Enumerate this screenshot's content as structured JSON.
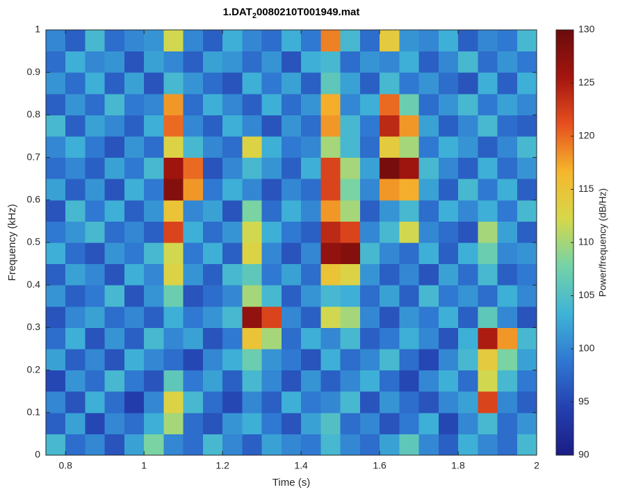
{
  "chart_data": {
    "type": "heatmap",
    "title": {
      "main": "1.DAT",
      "subscript": "2",
      "rest": "0080210T001949.mat"
    },
    "x_label": "Time (s)",
    "y_label": "Frequency (kHz)",
    "colorbar_label": "Power/frequency (dB/Hz)",
    "xlim": [
      0.75,
      2
    ],
    "xticks": [
      0.8,
      1,
      1.2,
      1.4,
      1.6,
      1.8,
      2
    ],
    "ylim": [
      0,
      1
    ],
    "yticks": [
      0,
      0.1,
      0.2,
      0.3,
      0.4,
      0.5,
      0.6,
      0.7,
      0.8,
      0.9,
      1
    ],
    "clim": [
      90,
      130
    ],
    "cticks": [
      90,
      95,
      100,
      105,
      110,
      115,
      120,
      125,
      130
    ],
    "colormap": [
      "#1b1c85",
      "#2440b0",
      "#2f78d2",
      "#3fb3d6",
      "#74d3a8",
      "#d6d84a",
      "#f6b62c",
      "#e6501f",
      "#a4150f",
      "#6a0c0c"
    ],
    "x_edges": [
      0.75,
      0.8,
      0.85,
      0.9,
      0.95,
      1,
      1.05,
      1.1,
      1.15,
      1.2,
      1.25,
      1.3,
      1.35,
      1.4,
      1.45,
      1.5,
      1.55,
      1.6,
      1.65,
      1.7,
      1.75,
      1.8,
      1.85,
      1.9,
      1.95,
      2
    ],
    "y_edges": [
      0,
      0.05,
      0.1,
      0.15,
      0.2,
      0.25,
      0.3,
      0.35,
      0.4,
      0.45,
      0.5,
      0.55,
      0.6,
      0.65,
      0.7,
      0.75,
      0.8,
      0.85,
      0.9,
      0.95,
      1
    ],
    "values": [
      [
        104,
        98,
        100,
        96,
        102,
        108,
        100,
        98,
        104,
        100,
        97,
        102,
        100,
        99,
        104,
        100,
        98,
        102,
        106,
        100,
        97,
        103,
        100,
        98,
        104
      ],
      [
        97,
        102,
        95,
        100,
        98,
        103,
        110,
        98,
        96,
        101,
        103,
        99,
        96,
        102,
        105,
        98,
        100,
        96,
        99,
        103,
        95,
        100,
        104,
        98,
        101
      ],
      [
        100,
        96,
        103,
        98,
        94,
        100,
        113,
        104,
        98,
        95,
        100,
        97,
        103,
        99,
        100,
        104,
        96,
        101,
        98,
        96,
        100,
        102,
        122,
        100,
        97
      ],
      [
        95,
        101,
        98,
        104,
        99,
        96,
        106,
        99,
        102,
        97,
        104,
        100,
        96,
        101,
        97,
        100,
        103,
        98,
        95,
        100,
        103,
        98,
        112,
        104,
        99
      ],
      [
        102,
        97,
        100,
        96,
        103,
        100,
        98,
        95,
        100,
        103,
        107,
        101,
        99,
        96,
        103,
        98,
        100,
        104,
        98,
        95,
        100,
        104,
        114,
        108,
        102
      ],
      [
        98,
        103,
        96,
        101,
        97,
        104,
        100,
        102,
        96,
        99,
        115,
        110,
        98,
        103,
        100,
        104,
        97,
        99,
        103,
        100,
        96,
        103,
        125,
        118,
        104
      ],
      [
        96,
        100,
        102,
        98,
        100,
        97,
        103,
        99,
        101,
        104,
        127,
        122,
        100,
        97,
        112,
        110,
        100,
        96,
        101,
        99,
        103,
        97,
        106,
        100,
        96
      ],
      [
        101,
        97,
        99,
        104,
        96,
        101,
        107,
        96,
        98,
        100,
        110,
        104,
        97,
        101,
        104,
        103,
        98,
        102,
        97,
        104,
        99,
        101,
        98,
        103,
        100
      ],
      [
        97,
        102,
        100,
        96,
        103,
        100,
        113,
        101,
        97,
        104,
        106,
        99,
        102,
        98,
        115,
        113,
        101,
        97,
        100,
        96,
        102,
        98,
        104,
        97,
        99
      ],
      [
        103,
        98,
        96,
        101,
        99,
        104,
        112,
        99,
        103,
        97,
        113,
        100,
        96,
        100,
        127,
        128,
        104,
        100,
        98,
        103,
        97,
        103,
        107,
        100,
        101
      ],
      [
        99,
        101,
        104,
        98,
        100,
        97,
        122,
        103,
        98,
        101,
        112,
        103,
        99,
        97,
        124,
        122,
        100,
        104,
        112,
        100,
        98,
        96,
        110,
        102,
        97
      ],
      [
        96,
        104,
        99,
        103,
        97,
        101,
        115,
        100,
        102,
        96,
        108,
        98,
        103,
        100,
        118,
        110,
        97,
        101,
        104,
        98,
        103,
        100,
        103,
        99,
        104
      ],
      [
        102,
        97,
        101,
        96,
        103,
        99,
        128,
        118,
        99,
        103,
        100,
        96,
        100,
        98,
        122,
        108,
        100,
        118,
        117,
        102,
        97,
        104,
        99,
        103,
        97
      ],
      [
        98,
        100,
        97,
        102,
        99,
        104,
        126,
        120,
        96,
        100,
        104,
        101,
        97,
        103,
        122,
        110,
        102,
        129,
        126,
        104,
        100,
        97,
        103,
        98,
        101
      ],
      [
        100,
        103,
        99,
        96,
        101,
        98,
        113,
        104,
        100,
        98,
        113,
        103,
        99,
        100,
        110,
        104,
        98,
        114,
        110,
        99,
        103,
        101,
        97,
        100,
        104
      ],
      [
        104,
        97,
        102,
        100,
        97,
        103,
        120,
        100,
        97,
        103,
        100,
        96,
        101,
        98,
        118,
        104,
        99,
        124,
        118,
        102,
        97,
        100,
        104,
        98,
        97
      ],
      [
        97,
        101,
        98,
        104,
        99,
        100,
        118,
        98,
        103,
        100,
        97,
        103,
        98,
        101,
        117,
        100,
        103,
        120,
        107,
        98,
        101,
        104,
        99,
        102,
        100
      ],
      [
        101,
        98,
        103,
        97,
        102,
        96,
        104,
        101,
        98,
        96,
        103,
        99,
        102,
        97,
        106,
        102,
        97,
        104,
        99,
        101,
        98,
        96,
        103,
        97,
        103
      ],
      [
        98,
        103,
        100,
        101,
        96,
        102,
        100,
        97,
        102,
        101,
        98,
        101,
        96,
        103,
        104,
        98,
        101,
        100,
        103,
        97,
        100,
        104,
        98,
        101,
        99
      ],
      [
        100,
        97,
        104,
        98,
        100,
        101,
        112,
        100,
        97,
        103,
        100,
        98,
        103,
        99,
        119,
        104,
        98,
        114,
        101,
        100,
        103,
        97,
        100,
        99,
        104
      ]
    ]
  }
}
